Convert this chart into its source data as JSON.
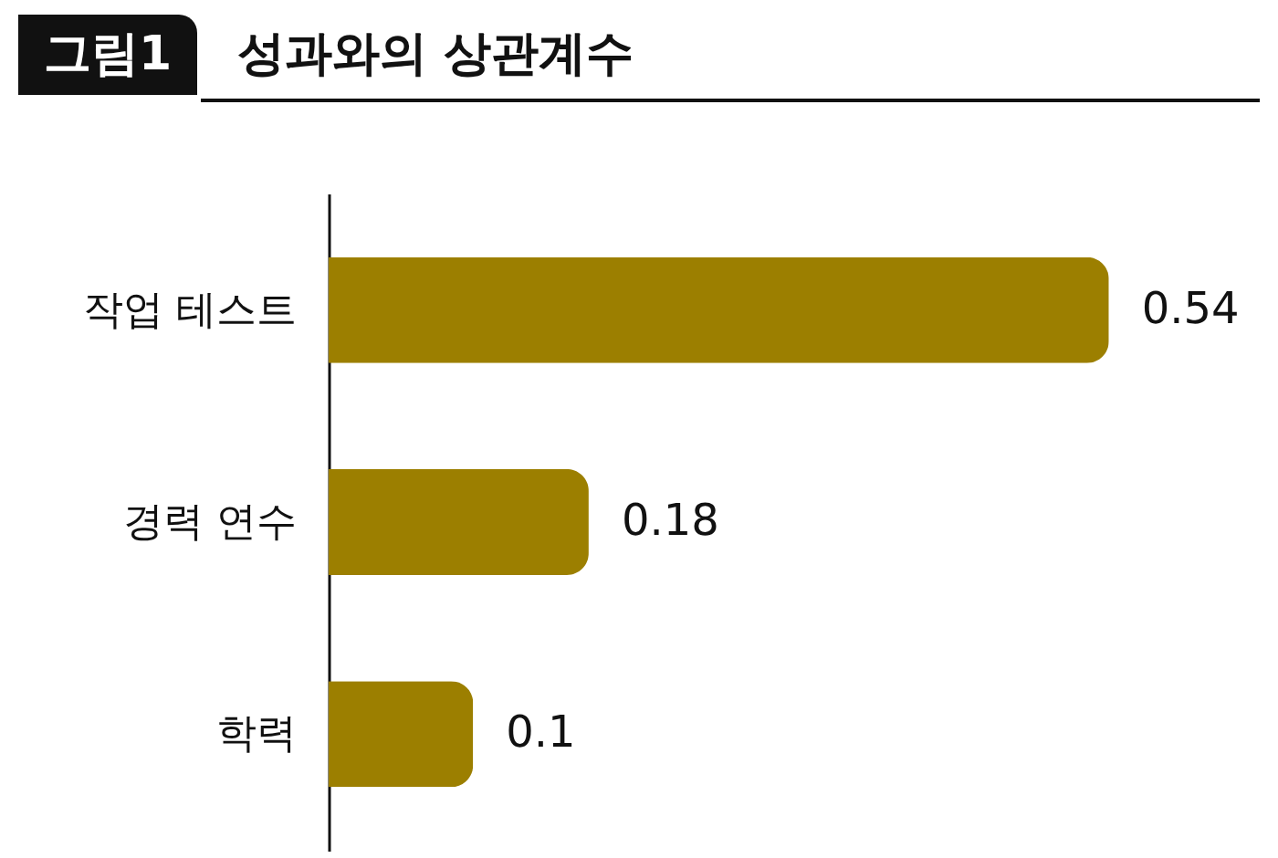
{
  "chart_data": {
    "type": "bar",
    "orientation": "horizontal",
    "title": "성과와의 상관계수",
    "annotations": [
      "그림1"
    ],
    "categories": [
      "작업 테스트",
      "경력 연수",
      "학력"
    ],
    "values": [
      0.54,
      0.18,
      0.1
    ],
    "color": "#9c7f00",
    "data_labels": true
  }
}
